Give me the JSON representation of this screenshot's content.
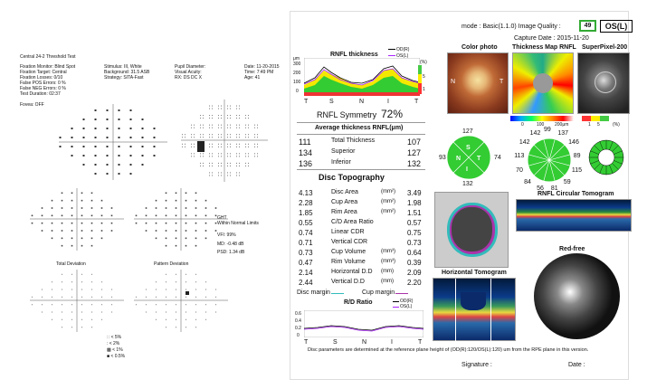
{
  "vf": {
    "title": "Central 24-2 Threshold Test",
    "fixation_monitor": "Fixation Monitor: Blind Spot",
    "fixation_target": "Fixation Target: Central",
    "fixation_losses": "Fixation Losses: 0/10",
    "false_pos": "False POS Errors:   0 %",
    "false_neg": "False NEG Errors:   0 %",
    "test_duration": "Test Duration: 02:37",
    "fovea": "Fovea: OFF",
    "stimulus": "Stimulus: III, White",
    "background": "Background: 31.5 ASB",
    "strategy": "Strategy: SITA-Fast",
    "pupil": "Pupil Diameter:",
    "visual_acuity": "Visual Acuity:",
    "rx": "RX:       DS       DC  X",
    "date": "Date: 11-20-2015",
    "time": "Time: 7:49 PM",
    "age": "Age: 41",
    "ght_label": "GHT",
    "ght_value": "Within Normal Limits",
    "vfi": "VFI:       99%",
    "md": "MD:       -0.48 dB",
    "psd": "PSD:       1.34 dB",
    "total_deviation": "Total Deviation",
    "pattern_deviation": "Pattern Deviation",
    "legend": [
      "∷ < 5%",
      "∶ < 2%",
      "▩ < 1%",
      "■ < 0.5%"
    ]
  },
  "oct": {
    "mode": "mode : Basic(1.1.0)  Image Quality :",
    "quality": "49",
    "eye": "OS(L)",
    "capture_date": "Capture Date : 2015-11-20",
    "color_photo": "Color photo",
    "thickness_map": "Thickness Map RNFL",
    "superpixel": "SuperPixel-200",
    "nasal": "N",
    "temporal": "T",
    "scale_ticks": [
      "0",
      "100",
      "200μm"
    ],
    "pct_ticks": [
      "1",
      "5"
    ],
    "pct_unit": "(%)"
  },
  "rnfl": {
    "title": "RNFL thickness",
    "legend_od": "OD(R)",
    "legend_os": "OS(L)",
    "y_unit": "μm",
    "y_ticks": [
      "300",
      "200",
      "100",
      "0"
    ],
    "pct_label": "(%)",
    "pct_ticks": [
      "5",
      "1"
    ],
    "x_labels": [
      "T",
      "S",
      "N",
      "I",
      "T"
    ],
    "symmetry_label": "RNFL Symmetry",
    "symmetry_value": "72%",
    "avg_title": "Average thickness RNFL(μm)",
    "rows": [
      {
        "od": "111",
        "name": "Total Thickness",
        "os": "107"
      },
      {
        "od": "134",
        "name": "Superior",
        "os": "127"
      },
      {
        "od": "136",
        "name": "Inferior",
        "os": "132"
      }
    ]
  },
  "sectors": {
    "quad": {
      "top": "127",
      "left": "93",
      "right": "74",
      "bottom": "132",
      "n": "N",
      "t": "T",
      "s": "S",
      "i": "I"
    },
    "clock": [
      "99",
      "137",
      "146",
      "89",
      "115",
      "59",
      "81",
      "56",
      "84",
      "70",
      "113",
      "142",
      "142"
    ]
  },
  "disc": {
    "title": "Disc Topography",
    "rows": [
      {
        "od": "4.13",
        "name": "Disc Area",
        "unit": "(mm²)",
        "os": "3.49"
      },
      {
        "od": "2.28",
        "name": "Cup Area",
        "unit": "(mm²)",
        "os": "1.98"
      },
      {
        "od": "1.85",
        "name": "Rim Area",
        "unit": "(mm²)",
        "os": "1.51"
      },
      {
        "od": "0.55",
        "name": "C/D Area Ratio",
        "unit": "",
        "os": "0.57"
      },
      {
        "od": "0.74",
        "name": "Linear CDR",
        "unit": "",
        "os": "0.75"
      },
      {
        "od": "0.71",
        "name": "Vertical CDR",
        "unit": "",
        "os": "0.73"
      },
      {
        "od": "0.73",
        "name": "Cup Volume",
        "unit": "(mm³)",
        "os": "0.64"
      },
      {
        "od": "0.47",
        "name": "Rim Volume",
        "unit": "(mm³)",
        "os": "0.39"
      },
      {
        "od": "2.14",
        "name": "Horizontal D.D",
        "unit": "(mm)",
        "os": "2.09"
      },
      {
        "od": "2.44",
        "name": "Vertical D.D",
        "unit": "(mm)",
        "os": "2.20"
      }
    ],
    "disc_margin": "Disc margin",
    "cup_margin": "Cup margin",
    "rd_title": "R/D Ratio",
    "od": "OD(R)",
    "os": "OS(L)",
    "rd_ticks": [
      "0.6",
      "0.4",
      "0.2",
      "0"
    ],
    "rd_x": [
      "T",
      "S",
      "N",
      "I",
      "T"
    ]
  },
  "panels": {
    "rnfl_tomogram": "RNFL Circular Tomogram",
    "horizontal_tomogram": "Horizontal Tomogram",
    "red_free": "Red-free"
  },
  "footer": {
    "note": "Disc parameters are determined at the reference plane height of (OD(R):120/OS(L):120) um from the RPE plane in this version.",
    "signature": "Signature :",
    "date": "Date :"
  }
}
